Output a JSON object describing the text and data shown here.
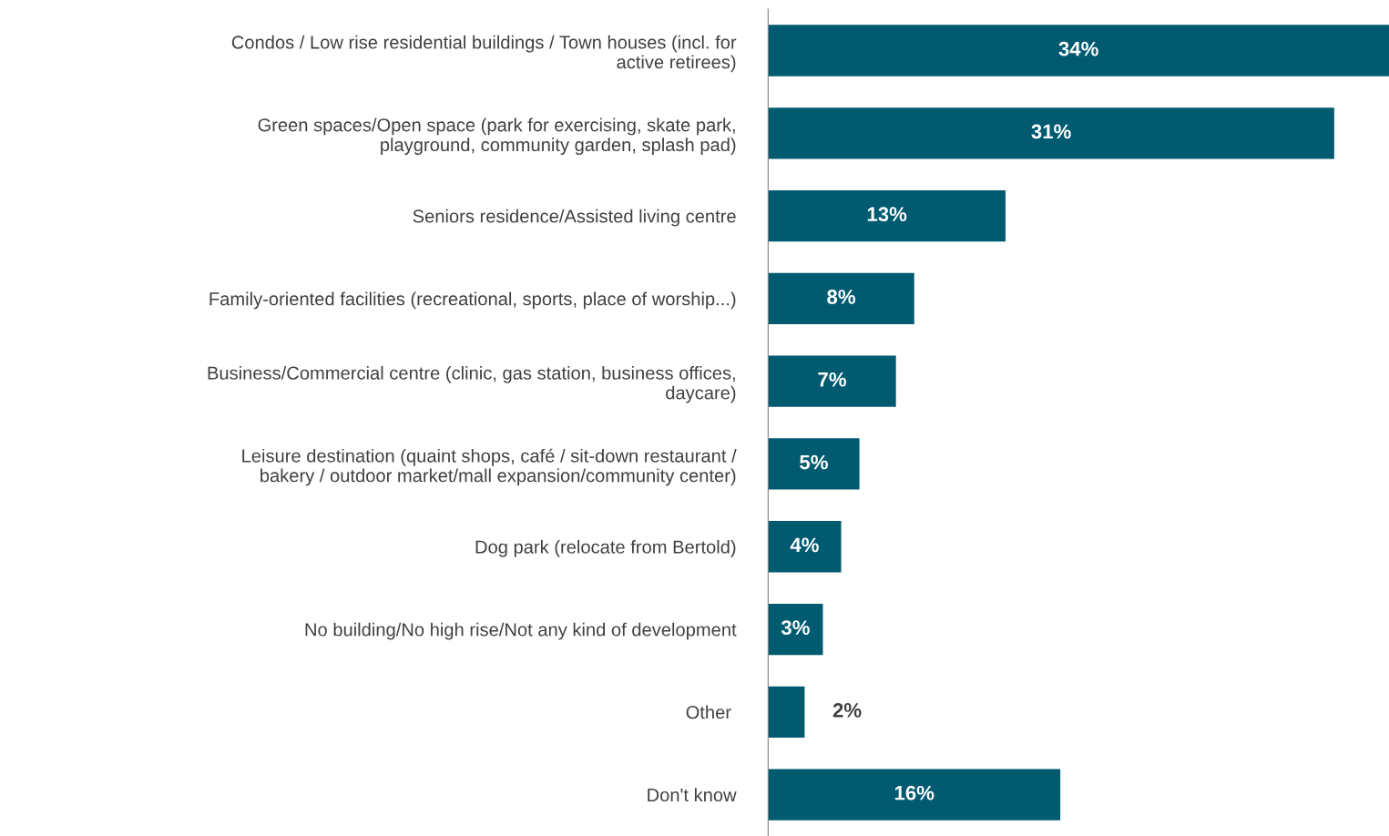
{
  "chart_data": {
    "type": "bar",
    "orientation": "horizontal",
    "categories": [
      "Condos / Low rise residential buildings / Town houses (incl. for\nactive retirees)",
      "Green spaces/Open space (park for exercising, skate park,\nplayground, community garden, splash pad)",
      "Seniors residence/Assisted living centre",
      "Family-oriented facilities (recreational, sports, place of worship...)",
      "Business/Commercial centre (clinic, gas station, business offices,\ndaycare)",
      "Leisure destination (quaint shops, café / sit-down restaurant /\nbakery / outdoor market/mall expansion/community center)",
      "Dog park (relocate from Bertold)",
      "No building/No high rise/Not any kind of development",
      "Other ",
      "Don't know"
    ],
    "values": [
      34,
      31,
      13,
      8,
      7,
      5,
      4,
      3,
      2,
      16
    ],
    "value_labels": [
      "34%",
      "31%",
      "13%",
      "8%",
      "7%",
      "5%",
      "4%",
      "3%",
      "2%",
      "16%"
    ],
    "color": "#005a70",
    "xlim": [
      0,
      34
    ],
    "grid": false,
    "legend": false
  }
}
